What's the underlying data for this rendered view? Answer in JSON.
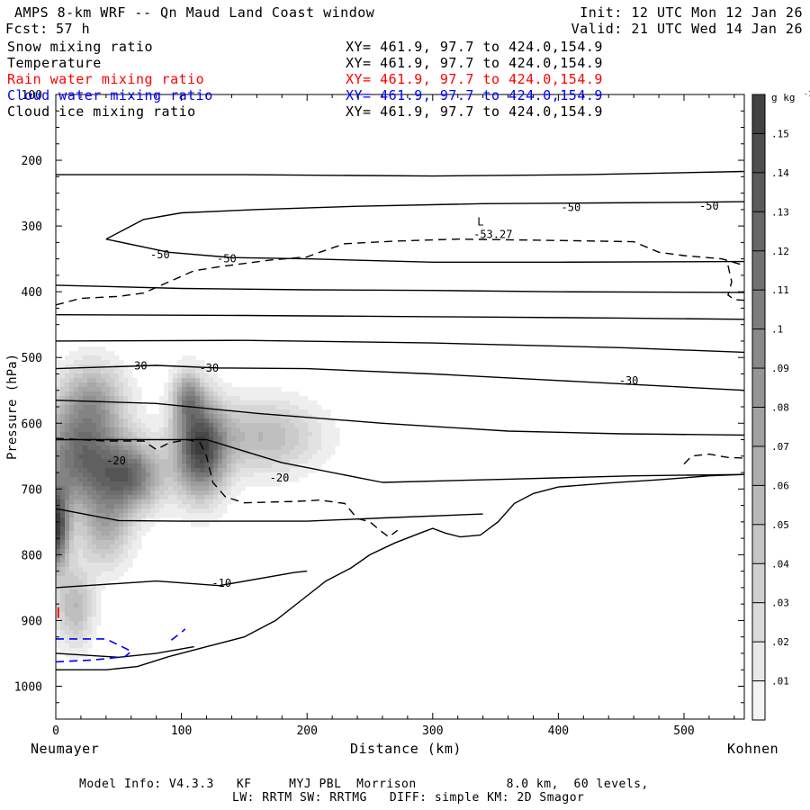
{
  "header": {
    "title": "AMPS 8-km WRF -- Qn Maud Land Coast window",
    "init": "Init: 12 UTC Mon 12 Jan 26",
    "fcst_label": "Fcst:",
    "fcst_value": "57 h",
    "valid": "Valid: 21 UTC Wed 14 Jan 26"
  },
  "fields": [
    {
      "name": "Snow mixing ratio",
      "xy": "XY= 461.9, 97.7 to 424.0,154.9",
      "color": "#000000"
    },
    {
      "name": "Temperature",
      "xy": "XY= 461.9, 97.7 to 424.0,154.9",
      "color": "#000000"
    },
    {
      "name": "Rain water mixing ratio",
      "xy": "XY= 461.9, 97.7 to 424.0,154.9",
      "color": "#ff0000"
    },
    {
      "name": "Cloud water mixing ratio",
      "xy": "XY= 461.9, 97.7 to 424.0,154.9",
      "color": "#0000ff"
    },
    {
      "name": "Cloud ice mixing ratio",
      "xy": "XY= 461.9, 97.7 to 424.0,154.9",
      "color": "#000000"
    }
  ],
  "footer": {
    "line1": "Model Info: V4.3.3   KF     MYJ PBL  Morrison            8.0 km,  60 levels,",
    "line2": "LW: RRTM SW: RRTMG   DIFF: simple KM: 2D Smagor"
  },
  "chart_data": {
    "type": "contour",
    "ylabel": "Pressure (hPa)",
    "xlabel": "Distance (km)",
    "x_left_label": "Neumayer",
    "x_right_label": "Kohnen",
    "xlim": [
      0,
      548
    ],
    "ylim": [
      1050,
      100
    ],
    "x_ticks": [
      0,
      100,
      200,
      300,
      400,
      500
    ],
    "y_ticks": [
      100,
      200,
      300,
      400,
      500,
      600,
      700,
      800,
      900,
      1000
    ],
    "colorbar": {
      "unit_label": "g kg",
      "unit_exp": "-1",
      "levels": [
        ".15",
        ".14",
        ".13",
        ".12",
        ".11",
        ".1",
        ".09",
        ".08",
        ".07",
        ".06",
        ".05",
        ".04",
        ".03",
        ".02",
        ".01"
      ],
      "range": [
        0,
        0.16
      ]
    },
    "snow_blobs": [
      {
        "x": 0,
        "p": 760,
        "amp": 0.16,
        "sx": 10,
        "sp": 60
      },
      {
        "x": 20,
        "p": 650,
        "amp": 0.12,
        "sx": 32,
        "sp": 80
      },
      {
        "x": 60,
        "p": 680,
        "amp": 0.11,
        "sx": 25,
        "sp": 50
      },
      {
        "x": 115,
        "p": 640,
        "amp": 0.15,
        "sx": 20,
        "sp": 70
      },
      {
        "x": 105,
        "p": 560,
        "amp": 0.08,
        "sx": 12,
        "sp": 40
      },
      {
        "x": 165,
        "p": 620,
        "amp": 0.06,
        "sx": 45,
        "sp": 55
      },
      {
        "x": 30,
        "p": 560,
        "amp": 0.06,
        "sx": 25,
        "sp": 55
      },
      {
        "x": 15,
        "p": 880,
        "amp": 0.06,
        "sx": 15,
        "sp": 60
      },
      {
        "x": 40,
        "p": 760,
        "amp": 0.06,
        "sx": 20,
        "sp": 60
      }
    ],
    "terrain": [
      [
        0,
        975
      ],
      [
        40,
        975
      ],
      [
        65,
        970
      ],
      [
        90,
        955
      ],
      [
        120,
        940
      ],
      [
        150,
        925
      ],
      [
        175,
        900
      ],
      [
        195,
        870
      ],
      [
        215,
        840
      ],
      [
        235,
        820
      ],
      [
        250,
        800
      ],
      [
        270,
        782
      ],
      [
        290,
        767
      ],
      [
        300,
        760
      ],
      [
        310,
        767
      ],
      [
        322,
        773
      ],
      [
        338,
        770
      ],
      [
        352,
        750
      ],
      [
        365,
        722
      ],
      [
        380,
        707
      ],
      [
        400,
        697
      ],
      [
        440,
        691
      ],
      [
        480,
        686
      ],
      [
        520,
        680
      ],
      [
        548,
        678
      ]
    ],
    "isotherms": [
      {
        "pts": [
          [
            0,
            222
          ],
          [
            150,
            222
          ],
          [
            300,
            224
          ],
          [
            420,
            222
          ],
          [
            548,
            217
          ]
        ]
      },
      {
        "pts": [
          [
            40,
            320
          ],
          [
            70,
            290
          ],
          [
            100,
            280
          ],
          [
            160,
            275
          ],
          [
            240,
            270
          ],
          [
            340,
            266
          ],
          [
            430,
            265
          ],
          [
            500,
            264
          ],
          [
            548,
            263
          ]
        ]
      },
      {
        "pts": [
          [
            40,
            320
          ],
          [
            90,
            340
          ],
          [
            140,
            348
          ],
          [
            200,
            350
          ],
          [
            300,
            355
          ],
          [
            400,
            355
          ],
          [
            548,
            354
          ]
        ]
      },
      {
        "pts": [
          [
            0,
            390
          ],
          [
            100,
            395
          ],
          [
            200,
            397
          ],
          [
            300,
            398
          ],
          [
            400,
            400
          ],
          [
            548,
            401
          ]
        ]
      },
      {
        "pts": [
          [
            0,
            435
          ],
          [
            150,
            436
          ],
          [
            300,
            438
          ],
          [
            450,
            440
          ],
          [
            548,
            442
          ]
        ]
      },
      {
        "pts": [
          [
            0,
            475
          ],
          [
            150,
            474
          ],
          [
            300,
            478
          ],
          [
            450,
            485
          ],
          [
            548,
            492
          ]
        ]
      },
      {
        "pts": [
          [
            0,
            517
          ],
          [
            80,
            512
          ],
          [
            130,
            516
          ],
          [
            200,
            517
          ],
          [
            300,
            525
          ],
          [
            400,
            535
          ],
          [
            548,
            550
          ]
        ]
      },
      {
        "pts": [
          [
            0,
            565
          ],
          [
            80,
            570
          ],
          [
            160,
            585
          ],
          [
            260,
            600
          ],
          [
            360,
            612
          ],
          [
            450,
            616
          ],
          [
            548,
            618
          ]
        ]
      },
      {
        "pts": [
          [
            0,
            625
          ],
          [
            120,
            625
          ],
          [
            180,
            660
          ],
          [
            260,
            690
          ],
          [
            360,
            685
          ],
          [
            460,
            680
          ],
          [
            548,
            678
          ]
        ]
      },
      {
        "pts": [
          [
            0,
            730
          ],
          [
            50,
            748
          ],
          [
            100,
            749
          ],
          [
            200,
            749
          ],
          [
            260,
            744
          ],
          [
            340,
            738
          ]
        ]
      },
      {
        "pts": [
          [
            0,
            850
          ],
          [
            80,
            840
          ],
          [
            130,
            847
          ],
          [
            190,
            827
          ],
          [
            200,
            825
          ]
        ]
      },
      {
        "pts": [
          [
            0,
            950
          ],
          [
            50,
            956
          ],
          [
            80,
            950
          ],
          [
            110,
            940
          ]
        ]
      }
    ],
    "isotherm_labels": [
      {
        "text": "-50",
        "x": 410,
        "p": 272
      },
      {
        "text": "-50",
        "x": 520,
        "p": 270
      },
      {
        "text": "-50",
        "x": 83,
        "p": 344
      },
      {
        "text": "-50",
        "x": 136,
        "p": 350
      },
      {
        "text": "-30",
        "x": 65,
        "p": 513
      },
      {
        "text": "-30",
        "x": 122,
        "p": 516
      },
      {
        "text": "-30",
        "x": 456,
        "p": 535
      },
      {
        "text": "-20",
        "x": 48,
        "p": 657
      },
      {
        "text": "-20",
        "x": 178,
        "p": 683
      },
      {
        "text": "-10",
        "x": 132,
        "p": 843
      }
    ],
    "cloud_ice": [
      {
        "pts": [
          [
            0,
            420
          ],
          [
            20,
            410
          ],
          [
            50,
            407
          ],
          [
            70,
            402
          ],
          [
            90,
            385
          ],
          [
            110,
            368
          ],
          [
            130,
            362
          ],
          [
            170,
            352
          ],
          [
            200,
            347
          ],
          [
            210,
            340
          ],
          [
            230,
            327
          ],
          [
            270,
            323
          ],
          [
            320,
            320
          ],
          [
            400,
            322
          ],
          [
            460,
            324
          ],
          [
            480,
            340
          ],
          [
            500,
            345
          ],
          [
            530,
            350
          ],
          [
            548,
            360
          ]
        ]
      },
      {
        "pts": [
          [
            535,
            360
          ],
          [
            538,
            385
          ],
          [
            535,
            405
          ],
          [
            540,
            412
          ],
          [
            548,
            413
          ]
        ]
      },
      {
        "pts": [
          [
            0,
            623
          ],
          [
            40,
            627
          ],
          [
            70,
            627
          ],
          [
            80,
            640
          ],
          [
            90,
            630
          ],
          [
            105,
            625
          ],
          [
            115,
            630
          ],
          [
            120,
            650
          ],
          [
            125,
            690
          ],
          [
            135,
            712
          ],
          [
            150,
            721
          ],
          [
            170,
            720
          ],
          [
            190,
            719
          ],
          [
            210,
            717
          ],
          [
            230,
            722
          ],
          [
            240,
            745
          ],
          [
            250,
            750
          ],
          [
            258,
            763
          ],
          [
            265,
            773
          ],
          [
            272,
            763
          ]
        ]
      },
      {
        "pts": [
          [
            500,
            662
          ],
          [
            506,
            650
          ],
          [
            520,
            647
          ],
          [
            535,
            652
          ],
          [
            548,
            653
          ]
        ]
      }
    ],
    "low_label": {
      "text": "L",
      "value": "-53.27",
      "x": 338,
      "p": 302
    },
    "cloud_water": [
      {
        "pts": [
          [
            0,
            928
          ],
          [
            40,
            928
          ],
          [
            55,
            942
          ],
          [
            60,
            947
          ]
        ]
      },
      {
        "pts": [
          [
            0,
            963
          ],
          [
            30,
            960
          ],
          [
            55,
            955
          ],
          [
            60,
            947
          ]
        ]
      },
      {
        "pts": [
          [
            92,
            930
          ],
          [
            100,
            918
          ],
          [
            103,
            913
          ]
        ]
      }
    ],
    "rain_marker": {
      "x": 2,
      "p": 888
    }
  }
}
